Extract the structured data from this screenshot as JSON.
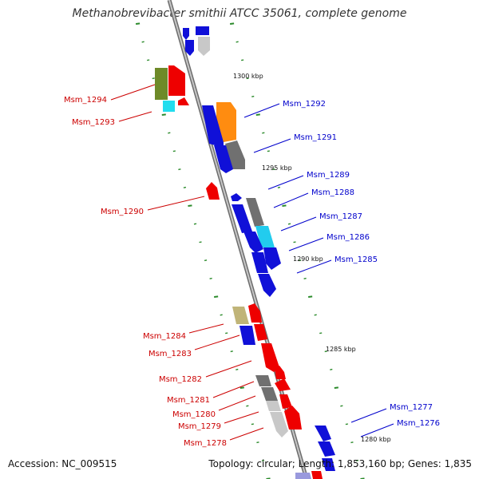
{
  "title": "Methanobrevibacter smithii ATCC 35061, complete genome",
  "footer": {
    "accession": "Accession: NC_009515",
    "summary": "Topology: circular; Length: 1,853,160 bp; Genes: 1,835"
  },
  "colors": {
    "backbone": "#8a8a8a",
    "tick": "#2a8a2a",
    "label_left": "#cc0000",
    "label_right": "#0000cc"
  },
  "scale_labels": [
    "1300 kbp",
    "1295 kbp",
    "1290 kbp",
    "1285 kbp",
    "1280 kbp"
  ],
  "genes_left": [
    "Msm_1294",
    "Msm_1293",
    "Msm_1290",
    "Msm_1284",
    "Msm_1283",
    "Msm_1282",
    "Msm_1281",
    "Msm_1280",
    "Msm_1279",
    "Msm_1278"
  ],
  "genes_right": [
    "Msm_1292",
    "Msm_1291",
    "Msm_1289",
    "Msm_1288",
    "Msm_1287",
    "Msm_1286",
    "Msm_1285",
    "Msm_1277",
    "Msm_1276"
  ]
}
